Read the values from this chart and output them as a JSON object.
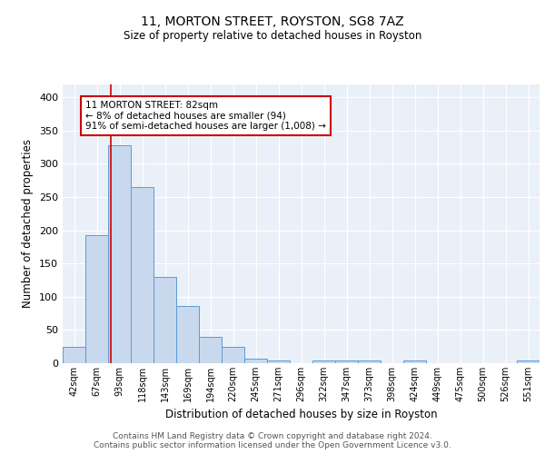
{
  "title1": "11, MORTON STREET, ROYSTON, SG8 7AZ",
  "title2": "Size of property relative to detached houses in Royston",
  "xlabel": "Distribution of detached houses by size in Royston",
  "ylabel": "Number of detached properties",
  "bar_labels": [
    "42sqm",
    "67sqm",
    "93sqm",
    "118sqm",
    "143sqm",
    "169sqm",
    "194sqm",
    "220sqm",
    "245sqm",
    "271sqm",
    "296sqm",
    "322sqm",
    "347sqm",
    "373sqm",
    "398sqm",
    "424sqm",
    "449sqm",
    "475sqm",
    "500sqm",
    "526sqm",
    "551sqm"
  ],
  "bar_values": [
    25,
    193,
    328,
    265,
    130,
    86,
    40,
    25,
    7,
    4,
    0,
    4,
    4,
    4,
    0,
    4,
    0,
    0,
    0,
    0,
    4
  ],
  "bar_color": "#c8d9ed",
  "bar_edge_color": "#5b9bd5",
  "ylim": [
    0,
    420
  ],
  "yticks": [
    0,
    50,
    100,
    150,
    200,
    250,
    300,
    350,
    400
  ],
  "property_line_x": 1.63,
  "property_line_color": "#cc0000",
  "annotation_text": "11 MORTON STREET: 82sqm\n← 8% of detached houses are smaller (94)\n91% of semi-detached houses are larger (1,008) →",
  "annotation_box_color": "#ffffff",
  "annotation_box_edge_color": "#cc0000",
  "footer_text": "Contains HM Land Registry data © Crown copyright and database right 2024.\nContains public sector information licensed under the Open Government Licence v3.0.",
  "plot_bg_color": "#eaf0f8",
  "grid_color": "#ffffff",
  "fig_width": 6.0,
  "fig_height": 5.0
}
